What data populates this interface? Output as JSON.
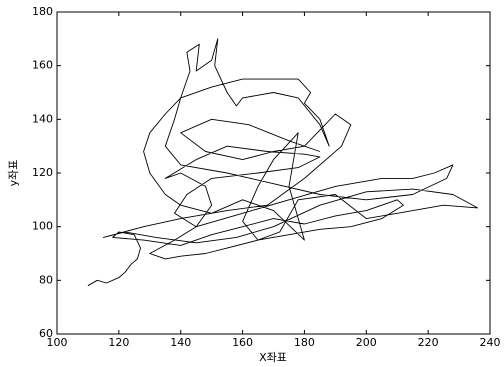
{
  "chart_data": {
    "type": "line",
    "xlabel": "X좌표",
    "ylabel": "y좌표",
    "xlim": [
      100,
      240
    ],
    "xticks": [
      100,
      120,
      140,
      160,
      180,
      200,
      220,
      240
    ],
    "ylim": [
      60,
      180
    ],
    "yticks": [
      60,
      80,
      100,
      120,
      140,
      160,
      180
    ],
    "color": "#000000",
    "x": [
      110,
      113,
      116,
      120,
      122,
      124,
      126,
      127,
      125,
      120,
      118,
      128,
      140,
      150,
      160,
      170,
      180,
      190,
      200,
      210,
      212,
      205,
      195,
      185,
      175,
      165,
      155,
      148,
      140,
      135,
      130,
      138,
      145,
      150,
      148,
      140,
      135,
      145,
      155,
      168,
      180,
      185,
      178,
      165,
      150,
      142,
      138,
      145,
      160,
      175,
      190,
      205,
      215,
      222,
      228,
      226,
      215,
      200,
      185,
      170,
      155,
      140,
      135,
      138,
      140,
      143,
      142,
      146,
      145,
      150,
      152,
      151,
      155,
      158,
      160,
      170,
      178,
      185,
      188,
      185,
      180,
      182,
      178,
      160,
      150,
      140,
      135,
      130,
      128,
      130,
      135,
      140,
      150,
      160,
      170,
      180,
      175,
      178,
      170,
      165,
      160,
      165,
      172,
      178,
      190,
      200,
      210,
      225,
      236,
      228,
      215,
      200,
      185,
      170,
      158,
      145,
      132,
      122,
      115,
      128,
      140,
      155,
      168,
      180,
      192,
      195,
      190,
      180,
      170,
      160,
      148,
      140,
      150,
      162,
      175,
      185
    ],
    "values": [
      78,
      80,
      79,
      81,
      83,
      86,
      88,
      92,
      97,
      98,
      96,
      95,
      93,
      97,
      100,
      103,
      101,
      104,
      106,
      110,
      108,
      103,
      100,
      99,
      97,
      95,
      92,
      90,
      89,
      88,
      90,
      95,
      100,
      108,
      115,
      120,
      118,
      125,
      130,
      128,
      127,
      126,
      122,
      120,
      118,
      112,
      105,
      100,
      105,
      110,
      115,
      118,
      118,
      120,
      123,
      118,
      112,
      110,
      112,
      116,
      120,
      123,
      130,
      140,
      148,
      158,
      165,
      168,
      158,
      162,
      170,
      160,
      150,
      145,
      148,
      150,
      148,
      138,
      130,
      140,
      146,
      150,
      155,
      155,
      152,
      148,
      142,
      135,
      128,
      120,
      112,
      108,
      105,
      110,
      106,
      95,
      115,
      135,
      125,
      115,
      102,
      95,
      98,
      110,
      112,
      103,
      105,
      108,
      107,
      112,
      114,
      113,
      108,
      100,
      96,
      94,
      96,
      98,
      96,
      100,
      103,
      106,
      108,
      118,
      130,
      138,
      142,
      130,
      128,
      125,
      128,
      135,
      140,
      138,
      132,
      128
    ]
  }
}
